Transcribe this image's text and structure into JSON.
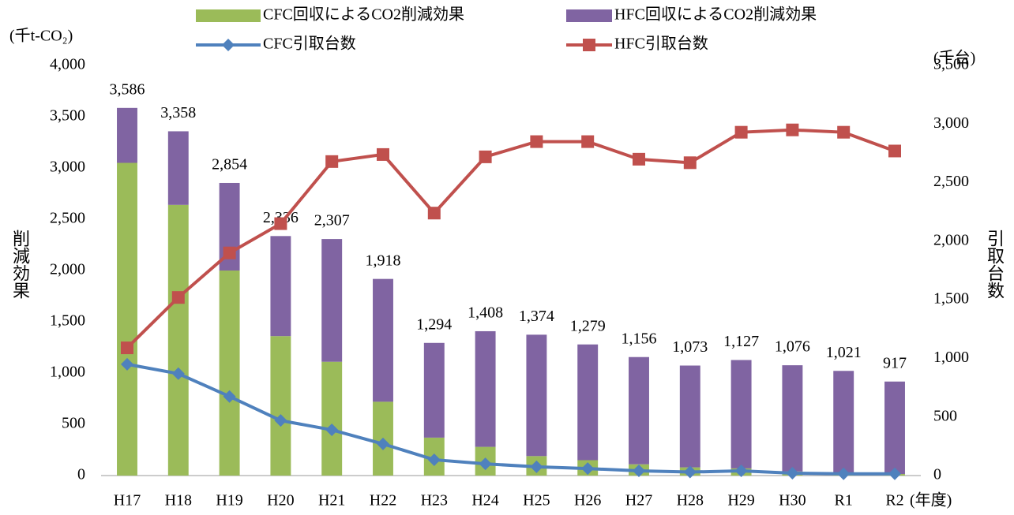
{
  "chart_data": {
    "type": "bar",
    "stacked": true,
    "categories": [
      "H17",
      "H18",
      "H19",
      "H20",
      "H21",
      "H22",
      "H23",
      "H24",
      "H25",
      "H26",
      "H27",
      "H28",
      "H29",
      "H30",
      "R1",
      "R2"
    ],
    "series": [
      {
        "name": "CFC回収によるCO2削減効果",
        "type": "bar",
        "color": "#9bbb59",
        "values": [
          3050,
          2640,
          2000,
          1360,
          1110,
          720,
          370,
          280,
          190,
          150,
          110,
          80,
          70,
          40,
          25,
          15
        ]
      },
      {
        "name": "HFC回収によるCO2削減効果",
        "type": "bar",
        "color": "#8064a2",
        "values": [
          536,
          718,
          854,
          976,
          1197,
          1198,
          924,
          1128,
          1184,
          1129,
          1046,
          993,
          1057,
          1036,
          996,
          902
        ]
      },
      {
        "name": "CFC引取台数",
        "type": "line",
        "axis": "y2",
        "marker": "diamond",
        "color": "#4f81bd",
        "values": [
          950,
          870,
          675,
          470,
          390,
          270,
          135,
          100,
          75,
          60,
          40,
          30,
          40,
          20,
          15,
          15
        ]
      },
      {
        "name": "HFC引取台数",
        "type": "line",
        "axis": "y2",
        "marker": "square",
        "color": "#c0504d",
        "values": [
          1090,
          1520,
          1900,
          2150,
          2680,
          2740,
          2240,
          2720,
          2850,
          2850,
          2700,
          2670,
          2930,
          2950,
          2930,
          2770
        ]
      }
    ],
    "totals": [
      3586,
      3358,
      2854,
      2336,
      2307,
      1918,
      1294,
      1408,
      1374,
      1279,
      1156,
      1073,
      1127,
      1076,
      1021,
      917
    ],
    "total_labels": [
      "3,586",
      "3,358",
      "2,854",
      "2,336",
      "2,307",
      "1,918",
      "1,294",
      "1,408",
      "1,374",
      "1,279",
      "1,156",
      "1,073",
      "1,127",
      "1,076",
      "1,021",
      "917"
    ],
    "ylabel": "削減効果",
    "y2label": "引取台数",
    "yunit": "(千t-CO₂)",
    "y2unit": "(千台)",
    "xunit": "(年度)",
    "ylim": [
      0,
      4000
    ],
    "yticks": [
      0,
      {
        "value": 500,
        "label": "500"
      },
      {
        "value": 1000,
        "label": "1,000"
      },
      {
        "value": 1500,
        "label": "1,500"
      },
      {
        "value": 2000,
        "label": "2,000"
      },
      {
        "value": 2500,
        "label": "2,500"
      },
      {
        "value": 3000,
        "label": "3,000"
      },
      {
        "value": 3500,
        "label": "3,500"
      },
      {
        "value": 4000,
        "label": "4,000"
      }
    ],
    "y2lim": [
      0,
      3500
    ],
    "y2ticks": [
      0,
      500,
      {
        "value": 1000,
        "label": "1,000"
      },
      {
        "value": 1500,
        "label": "1,500"
      },
      {
        "value": 2000,
        "label": "2,000"
      },
      {
        "value": 2500,
        "label": "2,500"
      },
      {
        "value": 3000,
        "label": "3,000"
      },
      {
        "value": 3500,
        "label": "3,500"
      }
    ],
    "grid": false
  }
}
